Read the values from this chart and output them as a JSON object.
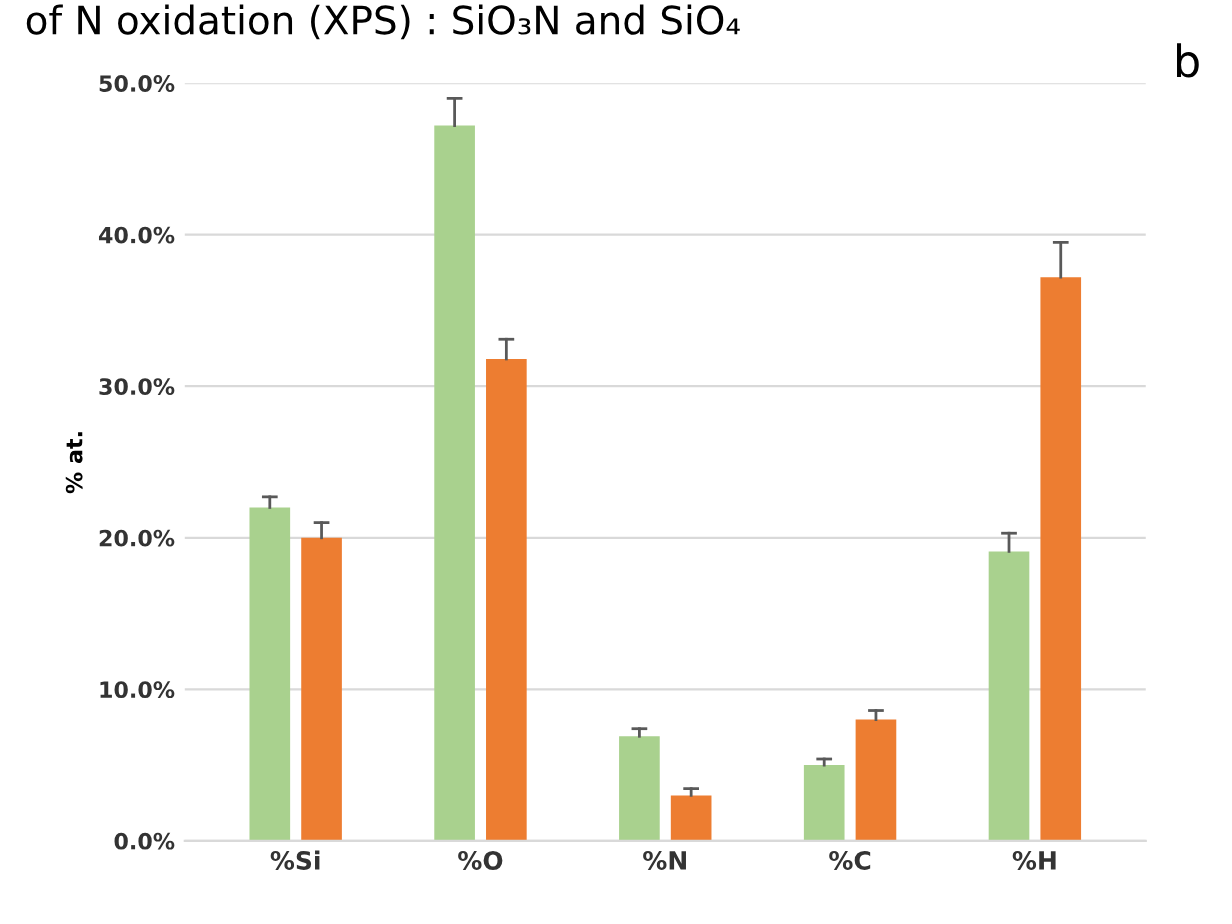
{
  "chart_data": {
    "type": "bar",
    "title": "of N oxidation (XPS) : SiO₃N and SiO₄",
    "ylabel": "% at.",
    "annotations": [
      "b"
    ],
    "categories": [
      "%Si",
      "%O",
      "%N",
      "%C",
      "%H"
    ],
    "series": [
      {
        "color": "#a9d18e",
        "values": [
          22.0,
          47.2,
          6.9,
          5.0,
          19.1
        ],
        "errors": [
          [
            22.0,
            22.7
          ],
          [
            47.2,
            49.0
          ],
          [
            6.9,
            7.4
          ],
          [
            5.0,
            5.4
          ],
          [
            19.1,
            20.3
          ]
        ]
      },
      {
        "color": "#ed7d31",
        "values": [
          20.0,
          31.8,
          3.0,
          8.0,
          37.2
        ],
        "errors": [
          [
            20.0,
            21.0
          ],
          [
            31.8,
            33.1
          ],
          [
            3.0,
            3.45
          ],
          [
            8.0,
            8.6
          ],
          [
            37.2,
            39.5
          ]
        ]
      }
    ],
    "ylim": [
      0,
      50
    ],
    "yticks": [
      {
        "value": 0,
        "label": "0.0%"
      },
      {
        "value": 10,
        "label": "10.0%"
      },
      {
        "value": 20,
        "label": "20.0%"
      },
      {
        "value": 30,
        "label": "30.0%"
      },
      {
        "value": 40,
        "label": "40.0%"
      },
      {
        "value": 50,
        "label": "50.0%"
      }
    ],
    "grid": "y"
  }
}
